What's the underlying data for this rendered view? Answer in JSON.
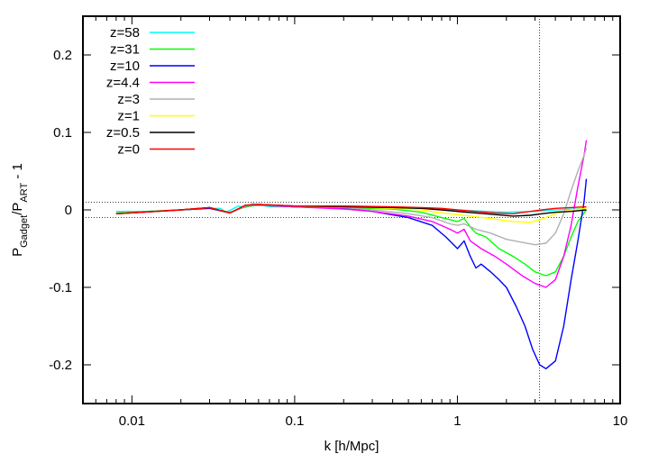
{
  "chart_data": {
    "type": "line",
    "xlabel": "k [h/Mpc]",
    "ylabel": {
      "main": "P",
      "sub1": "Gadget",
      "sep": "/P",
      "sub2": "ART",
      "tail": " - 1"
    },
    "x_scale": "log",
    "xlim": [
      0.005,
      10
    ],
    "ylim": [
      -0.25,
      0.25
    ],
    "x_ticks": [
      {
        "v": 0.01,
        "label": "0.01"
      },
      {
        "v": 0.1,
        "label": "0.1"
      },
      {
        "v": 1,
        "label": "1"
      },
      {
        "v": 10,
        "label": "10"
      }
    ],
    "y_ticks": [
      {
        "v": 0.2,
        "label": "0.2"
      },
      {
        "v": 0.1,
        "label": "0.1"
      },
      {
        "v": 0,
        "label": "0"
      },
      {
        "v": -0.1,
        "label": "-0.1"
      },
      {
        "v": -0.2,
        "label": "-0.2"
      }
    ],
    "reference_lines": {
      "horizontal": [
        0.01,
        -0.01
      ],
      "vertical": [
        3.2
      ]
    },
    "legend_position": "top-left",
    "series": [
      {
        "name": "z=58",
        "color": "#00ffff",
        "points": [
          [
            0.008,
            -0.002
          ],
          [
            0.012,
            -0.002
          ],
          [
            0.02,
            0.0
          ],
          [
            0.03,
            0.002
          ],
          [
            0.035,
            0.002
          ],
          [
            0.038,
            -0.003
          ],
          [
            0.045,
            0.005
          ],
          [
            0.05,
            0.003
          ],
          [
            0.055,
            0.008
          ],
          [
            0.07,
            0.004
          ],
          [
            0.09,
            0.004
          ],
          [
            0.1,
            0.005
          ],
          [
            0.2,
            0.004
          ],
          [
            0.4,
            0.003
          ],
          [
            0.6,
            0.002
          ],
          [
            0.8,
            0.001
          ],
          [
            1.0,
            0.0
          ],
          [
            1.5,
            -0.002
          ],
          [
            2,
            -0.003
          ],
          [
            3,
            -0.002
          ],
          [
            4,
            0.0
          ],
          [
            5,
            0.001
          ],
          [
            6.2,
            0.002
          ]
        ]
      },
      {
        "name": "z=31",
        "color": "#00ff00",
        "points": [
          [
            0.008,
            -0.004
          ],
          [
            0.02,
            0.0
          ],
          [
            0.03,
            0.002
          ],
          [
            0.04,
            -0.003
          ],
          [
            0.05,
            0.004
          ],
          [
            0.06,
            0.006
          ],
          [
            0.1,
            0.004
          ],
          [
            0.2,
            0.003
          ],
          [
            0.4,
            0.001
          ],
          [
            0.6,
            -0.003
          ],
          [
            0.8,
            -0.01
          ],
          [
            1.0,
            -0.015
          ],
          [
            1.1,
            -0.011
          ],
          [
            1.2,
            -0.022
          ],
          [
            1.3,
            -0.03
          ],
          [
            1.5,
            -0.035
          ],
          [
            1.8,
            -0.05
          ],
          [
            2.2,
            -0.06
          ],
          [
            2.6,
            -0.07
          ],
          [
            3.0,
            -0.08
          ],
          [
            3.5,
            -0.085
          ],
          [
            4,
            -0.08
          ],
          [
            4.5,
            -0.06
          ],
          [
            5,
            -0.035
          ],
          [
            5.5,
            -0.015
          ],
          [
            6.2,
            0.0
          ]
        ]
      },
      {
        "name": "z=10",
        "color": "#0000ff",
        "points": [
          [
            0.008,
            -0.005
          ],
          [
            0.02,
            0.0
          ],
          [
            0.03,
            0.002
          ],
          [
            0.04,
            -0.004
          ],
          [
            0.05,
            0.005
          ],
          [
            0.06,
            0.006
          ],
          [
            0.1,
            0.004
          ],
          [
            0.2,
            0.002
          ],
          [
            0.3,
            -0.002
          ],
          [
            0.5,
            -0.01
          ],
          [
            0.7,
            -0.02
          ],
          [
            0.85,
            -0.035
          ],
          [
            1.0,
            -0.05
          ],
          [
            1.1,
            -0.04
          ],
          [
            1.2,
            -0.06
          ],
          [
            1.3,
            -0.075
          ],
          [
            1.4,
            -0.07
          ],
          [
            1.6,
            -0.08
          ],
          [
            1.8,
            -0.09
          ],
          [
            2.0,
            -0.1
          ],
          [
            2.3,
            -0.125
          ],
          [
            2.6,
            -0.15
          ],
          [
            2.9,
            -0.18
          ],
          [
            3.2,
            -0.2
          ],
          [
            3.5,
            -0.205
          ],
          [
            4.0,
            -0.195
          ],
          [
            4.5,
            -0.15
          ],
          [
            5.0,
            -0.09
          ],
          [
            5.5,
            -0.04
          ],
          [
            6.0,
            0.01
          ],
          [
            6.2,
            0.04
          ]
        ]
      },
      {
        "name": "z=4.4",
        "color": "#ff00ff",
        "points": [
          [
            0.008,
            -0.005
          ],
          [
            0.02,
            0.0
          ],
          [
            0.03,
            0.003
          ],
          [
            0.04,
            -0.004
          ],
          [
            0.05,
            0.005
          ],
          [
            0.06,
            0.006
          ],
          [
            0.1,
            0.004
          ],
          [
            0.2,
            0.001
          ],
          [
            0.3,
            -0.002
          ],
          [
            0.5,
            -0.008
          ],
          [
            0.7,
            -0.015
          ],
          [
            0.9,
            -0.025
          ],
          [
            1.0,
            -0.03
          ],
          [
            1.1,
            -0.025
          ],
          [
            1.2,
            -0.04
          ],
          [
            1.4,
            -0.05
          ],
          [
            1.7,
            -0.06
          ],
          [
            2.0,
            -0.07
          ],
          [
            2.5,
            -0.085
          ],
          [
            3.0,
            -0.095
          ],
          [
            3.5,
            -0.1
          ],
          [
            4.0,
            -0.09
          ],
          [
            4.5,
            -0.06
          ],
          [
            5.0,
            -0.02
          ],
          [
            5.5,
            0.03
          ],
          [
            6.0,
            0.07
          ],
          [
            6.2,
            0.09
          ]
        ]
      },
      {
        "name": "z=3",
        "color": "#b0b0b0",
        "points": [
          [
            0.008,
            -0.005
          ],
          [
            0.02,
            0.0
          ],
          [
            0.03,
            0.003
          ],
          [
            0.04,
            -0.004
          ],
          [
            0.05,
            0.005
          ],
          [
            0.06,
            0.006
          ],
          [
            0.1,
            0.005
          ],
          [
            0.2,
            0.003
          ],
          [
            0.3,
            0.0
          ],
          [
            0.5,
            -0.005
          ],
          [
            0.7,
            -0.01
          ],
          [
            0.9,
            -0.018
          ],
          [
            1.0,
            -0.02
          ],
          [
            1.1,
            -0.018
          ],
          [
            1.3,
            -0.025
          ],
          [
            1.6,
            -0.03
          ],
          [
            2.0,
            -0.038
          ],
          [
            2.5,
            -0.042
          ],
          [
            3.0,
            -0.045
          ],
          [
            3.5,
            -0.043
          ],
          [
            4.0,
            -0.03
          ],
          [
            4.5,
            -0.005
          ],
          [
            5.0,
            0.025
          ],
          [
            5.5,
            0.05
          ],
          [
            6.0,
            0.07
          ],
          [
            6.2,
            0.08
          ]
        ]
      },
      {
        "name": "z=1",
        "color": "#ffff00",
        "points": [
          [
            0.008,
            -0.005
          ],
          [
            0.02,
            0.0
          ],
          [
            0.03,
            0.003
          ],
          [
            0.04,
            -0.004
          ],
          [
            0.05,
            0.006
          ],
          [
            0.06,
            0.007
          ],
          [
            0.1,
            0.005
          ],
          [
            0.2,
            0.004
          ],
          [
            0.4,
            0.002
          ],
          [
            0.6,
            0.0
          ],
          [
            0.8,
            -0.004
          ],
          [
            1.0,
            -0.006
          ],
          [
            1.3,
            -0.009
          ],
          [
            1.7,
            -0.012
          ],
          [
            2.2,
            -0.015
          ],
          [
            2.8,
            -0.016
          ],
          [
            3.3,
            -0.012
          ],
          [
            4.0,
            -0.005
          ],
          [
            5.0,
            0.0
          ],
          [
            6.2,
            0.002
          ]
        ]
      },
      {
        "name": "z=0.5",
        "color": "#000000",
        "points": [
          [
            0.008,
            -0.005
          ],
          [
            0.02,
            0.0
          ],
          [
            0.03,
            0.003
          ],
          [
            0.04,
            -0.004
          ],
          [
            0.05,
            0.006
          ],
          [
            0.06,
            0.007
          ],
          [
            0.1,
            0.005
          ],
          [
            0.2,
            0.004
          ],
          [
            0.4,
            0.003
          ],
          [
            0.6,
            0.002
          ],
          [
            0.8,
            0.0
          ],
          [
            1.0,
            -0.002
          ],
          [
            1.3,
            -0.004
          ],
          [
            1.7,
            -0.006
          ],
          [
            2.2,
            -0.008
          ],
          [
            2.8,
            -0.007
          ],
          [
            3.3,
            -0.005
          ],
          [
            4.0,
            -0.003
          ],
          [
            5.0,
            -0.002
          ],
          [
            6.2,
            0.0
          ]
        ]
      },
      {
        "name": "z=0",
        "color": "#ff0000",
        "points": [
          [
            0.008,
            -0.005
          ],
          [
            0.02,
            0.0
          ],
          [
            0.03,
            0.003
          ],
          [
            0.04,
            -0.004
          ],
          [
            0.05,
            0.006
          ],
          [
            0.06,
            0.007
          ],
          [
            0.1,
            0.005
          ],
          [
            0.2,
            0.005
          ],
          [
            0.4,
            0.004
          ],
          [
            0.6,
            0.003
          ],
          [
            0.8,
            0.002
          ],
          [
            1.0,
            0.0
          ],
          [
            1.3,
            -0.002
          ],
          [
            1.7,
            -0.004
          ],
          [
            2.2,
            -0.005
          ],
          [
            2.8,
            -0.002
          ],
          [
            3.3,
            0.0
          ],
          [
            4.0,
            0.002
          ],
          [
            5.0,
            0.003
          ],
          [
            6.2,
            0.004
          ]
        ]
      }
    ]
  }
}
